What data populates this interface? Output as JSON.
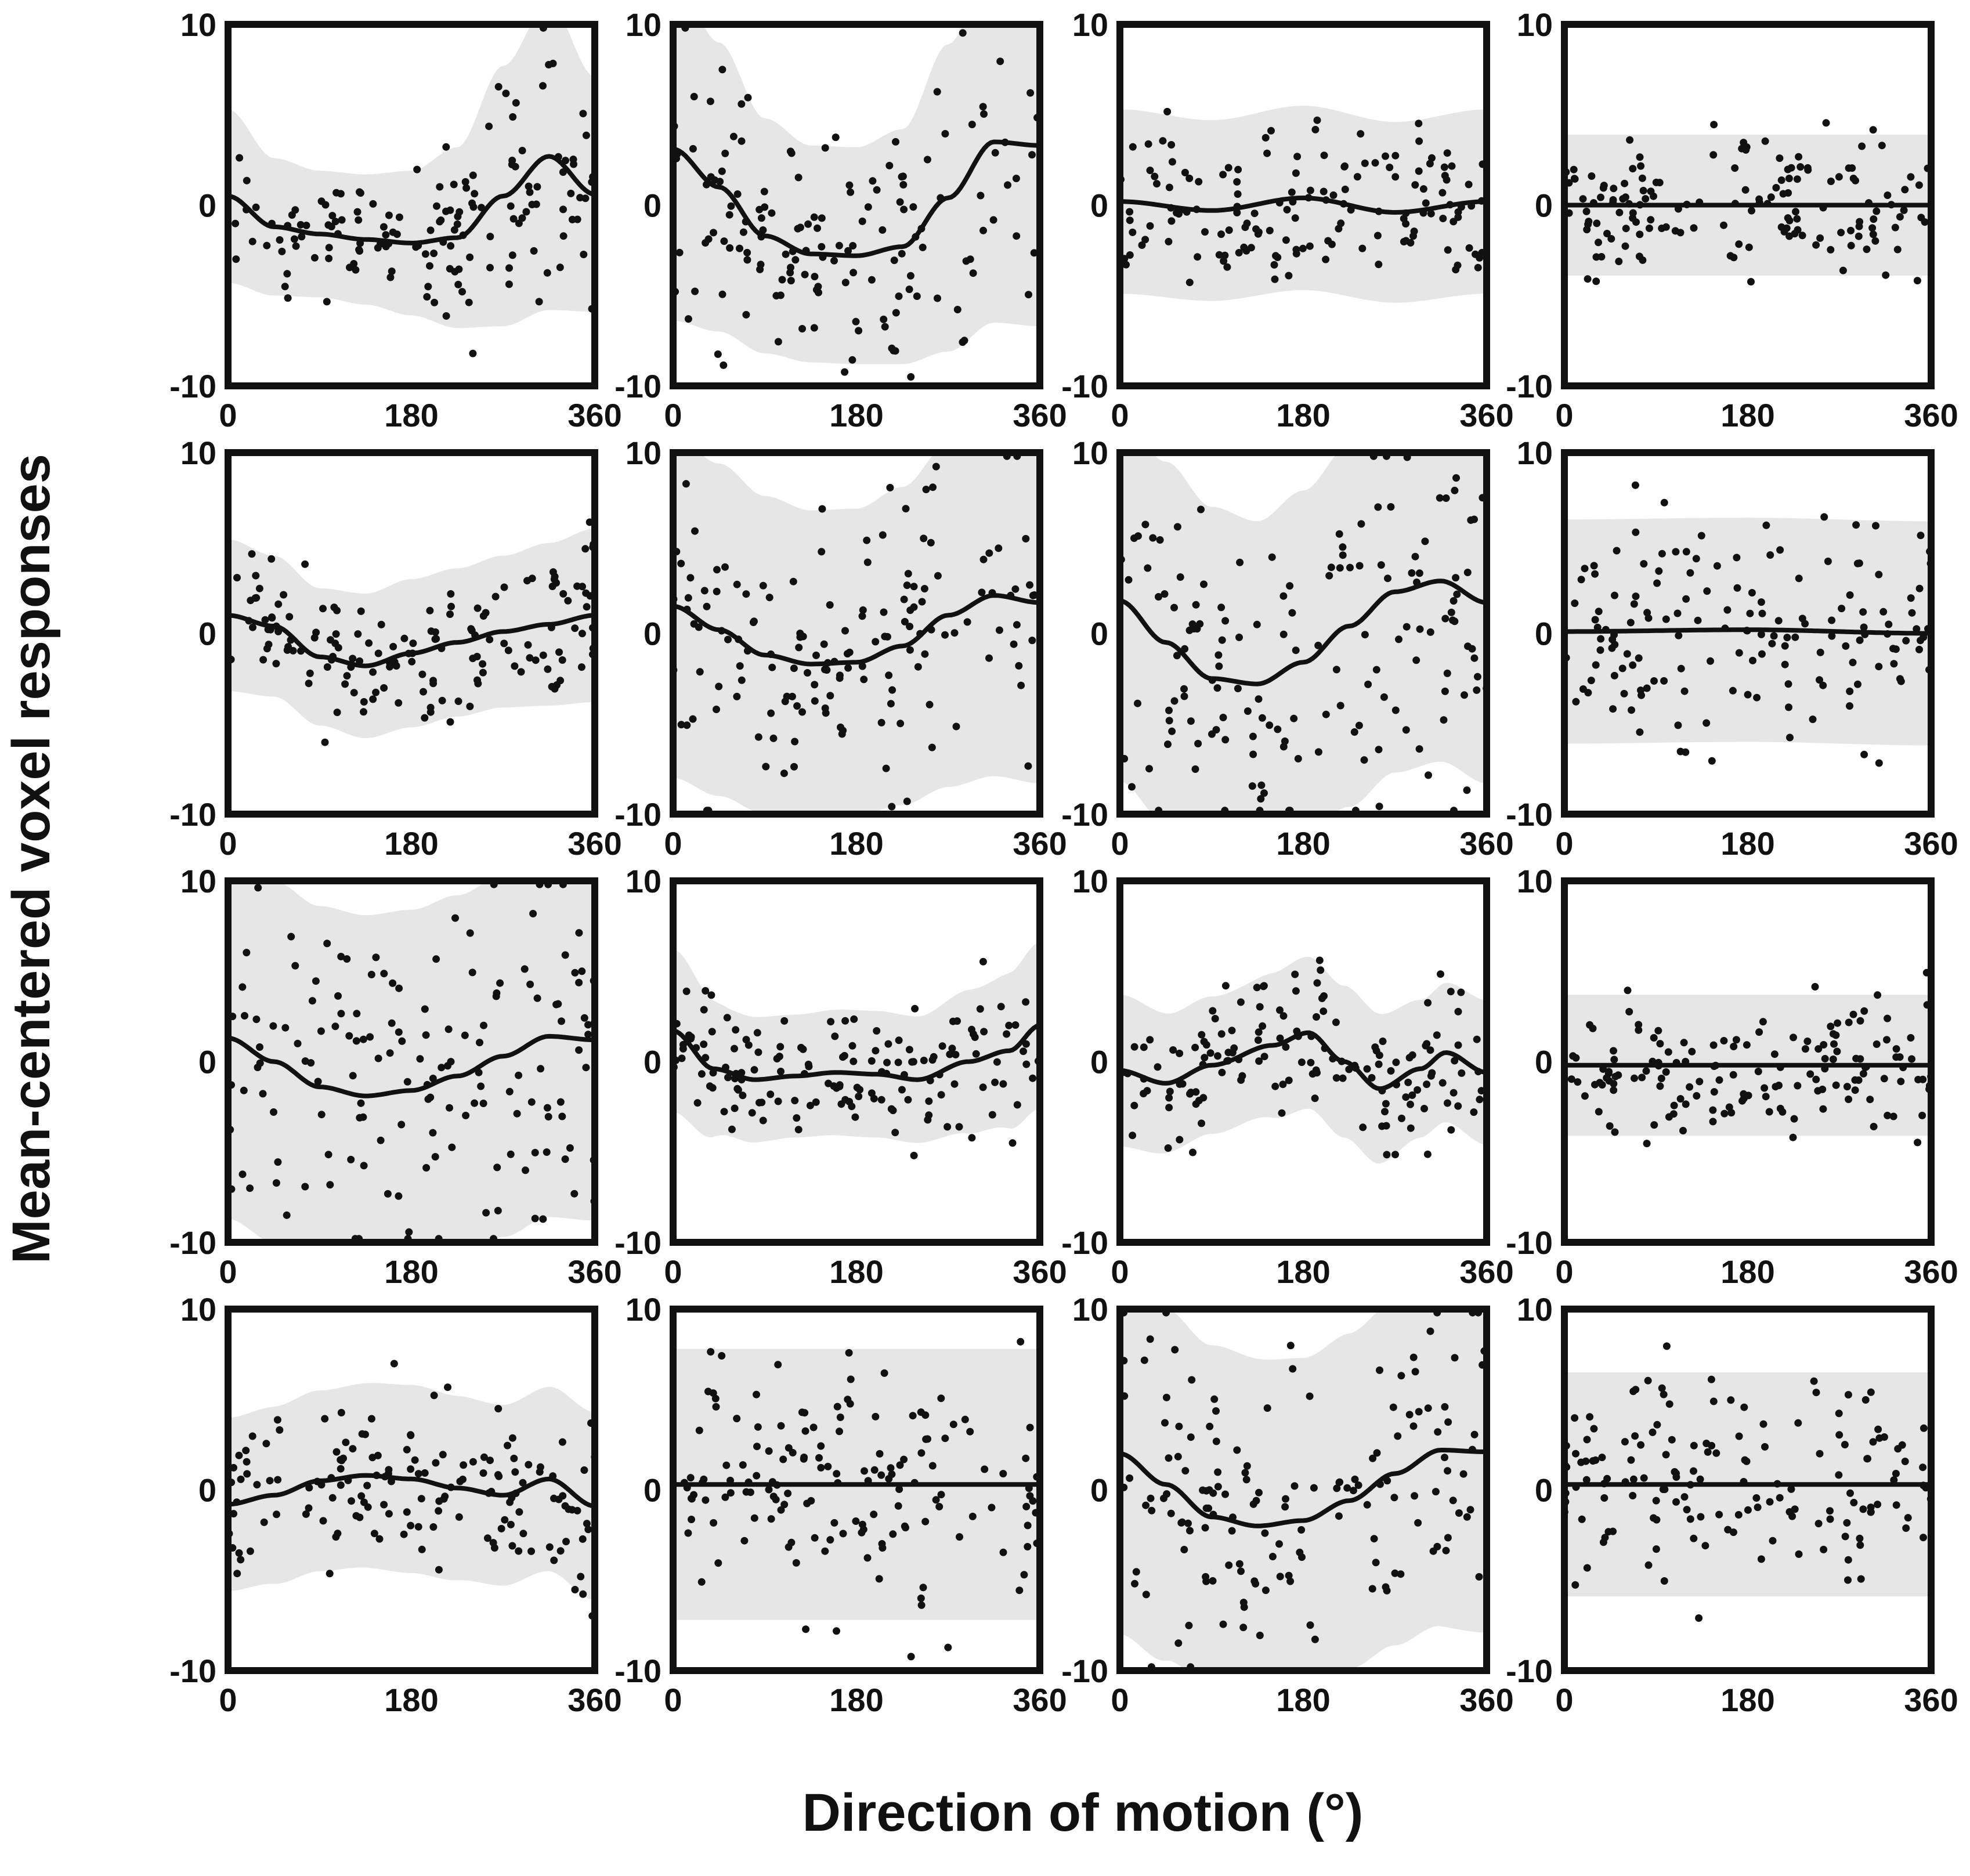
{
  "figure": {
    "ylabel": "Mean-centered voxel responses",
    "xlabel": "Direction of motion (°)"
  },
  "colors": {
    "band": "#e6e6e6",
    "curve": "#111111",
    "dots": "#111111",
    "frame": "#111111",
    "background": "#ffffff"
  },
  "chart_data": {
    "type": "scatter",
    "layout": "4x4 small multiples",
    "xlabel": "Direction of motion (°)",
    "ylabel": "Mean-centered voxel responses",
    "xlim": [
      0,
      360
    ],
    "ylim": [
      -10,
      10
    ],
    "xticks": [
      "0",
      "180",
      "360"
    ],
    "yticks": [
      "10",
      "0",
      "-10"
    ],
    "grid": false,
    "points_per_panel": 150,
    "panels": [
      {
        "row": 1,
        "col": 1,
        "fit": [
          [
            0,
            0.5
          ],
          [
            45,
            -1.2
          ],
          [
            90,
            -1.6
          ],
          [
            135,
            -1.9
          ],
          [
            180,
            -2.1
          ],
          [
            225,
            -1.8
          ],
          [
            270,
            0.5
          ],
          [
            315,
            2.7
          ],
          [
            360,
            0.6
          ]
        ],
        "band": [
          [
            0,
            4.8
          ],
          [
            45,
            3.8
          ],
          [
            90,
            3.5
          ],
          [
            135,
            3.6
          ],
          [
            180,
            4.0
          ],
          [
            225,
            5.0
          ],
          [
            270,
            7.2
          ],
          [
            315,
            8.5
          ],
          [
            360,
            6.5
          ]
        ],
        "seed": 11
      },
      {
        "row": 1,
        "col": 2,
        "fit": [
          [
            0,
            3.1
          ],
          [
            45,
            1.0
          ],
          [
            90,
            -1.7
          ],
          [
            135,
            -2.7
          ],
          [
            180,
            -2.8
          ],
          [
            225,
            -2.3
          ],
          [
            270,
            0.4
          ],
          [
            315,
            3.5
          ],
          [
            360,
            3.3
          ]
        ],
        "band": [
          [
            0,
            9.5
          ],
          [
            45,
            8.0
          ],
          [
            90,
            6.5
          ],
          [
            135,
            6.0
          ],
          [
            180,
            6.0
          ],
          [
            225,
            6.5
          ],
          [
            270,
            8.5
          ],
          [
            315,
            10
          ],
          [
            360,
            10
          ]
        ],
        "seed": 12
      },
      {
        "row": 1,
        "col": 3,
        "fit": [
          [
            0,
            0.2
          ],
          [
            90,
            -0.3
          ],
          [
            180,
            0.4
          ],
          [
            270,
            -0.4
          ],
          [
            360,
            0.2
          ]
        ],
        "band": [
          [
            0,
            5.1
          ],
          [
            90,
            5.0
          ],
          [
            180,
            5.1
          ],
          [
            270,
            5.0
          ],
          [
            360,
            5.1
          ]
        ],
        "seed": 13
      },
      {
        "row": 1,
        "col": 4,
        "fit": [
          [
            0,
            0
          ],
          [
            360,
            0
          ]
        ],
        "band": [
          [
            0,
            3.9
          ],
          [
            360,
            3.9
          ]
        ],
        "seed": 14
      },
      {
        "row": 2,
        "col": 1,
        "fit": [
          [
            0,
            1.0
          ],
          [
            45,
            0.4
          ],
          [
            90,
            -1.3
          ],
          [
            135,
            -1.8
          ],
          [
            180,
            -1.1
          ],
          [
            225,
            -0.5
          ],
          [
            270,
            0.1
          ],
          [
            315,
            0.5
          ],
          [
            360,
            1.0
          ]
        ],
        "band": [
          [
            0,
            4.2
          ],
          [
            45,
            3.9
          ],
          [
            90,
            3.8
          ],
          [
            135,
            4.0
          ],
          [
            180,
            4.1
          ],
          [
            225,
            4.1
          ],
          [
            270,
            4.2
          ],
          [
            315,
            4.5
          ],
          [
            360,
            4.8
          ]
        ],
        "seed": 21
      },
      {
        "row": 2,
        "col": 2,
        "fit": [
          [
            0,
            1.5
          ],
          [
            45,
            0.2
          ],
          [
            90,
            -1.2
          ],
          [
            135,
            -1.7
          ],
          [
            180,
            -1.6
          ],
          [
            225,
            -0.7
          ],
          [
            270,
            1.0
          ],
          [
            315,
            2.1
          ],
          [
            360,
            1.7
          ]
        ],
        "band": [
          [
            0,
            9.5
          ],
          [
            45,
            9.2
          ],
          [
            90,
            8.8
          ],
          [
            135,
            8.5
          ],
          [
            180,
            8.5
          ],
          [
            225,
            8.8
          ],
          [
            270,
            9.5
          ],
          [
            315,
            10
          ],
          [
            360,
            10
          ]
        ],
        "seed": 22
      },
      {
        "row": 2,
        "col": 3,
        "fit": [
          [
            0,
            1.8
          ],
          [
            45,
            -0.5
          ],
          [
            90,
            -2.5
          ],
          [
            135,
            -2.8
          ],
          [
            180,
            -1.6
          ],
          [
            225,
            0.4
          ],
          [
            270,
            2.3
          ],
          [
            315,
            2.9
          ],
          [
            360,
            1.7
          ]
        ],
        "band": [
          [
            0,
            10
          ],
          [
            45,
            10
          ],
          [
            90,
            9.5
          ],
          [
            135,
            9.0
          ],
          [
            180,
            9.5
          ],
          [
            225,
            10
          ],
          [
            270,
            10
          ],
          [
            315,
            10
          ],
          [
            360,
            10
          ]
        ],
        "seed": 23
      },
      {
        "row": 2,
        "col": 4,
        "fit": [
          [
            0,
            0.1
          ],
          [
            180,
            0.2
          ],
          [
            360,
            0
          ]
        ],
        "band": [
          [
            0,
            6.2
          ],
          [
            180,
            6.2
          ],
          [
            360,
            6.2
          ]
        ],
        "seed": 24
      },
      {
        "row": 3,
        "col": 1,
        "fit": [
          [
            0,
            1.3
          ],
          [
            45,
            0
          ],
          [
            90,
            -1.4
          ],
          [
            135,
            -1.9
          ],
          [
            180,
            -1.6
          ],
          [
            225,
            -0.8
          ],
          [
            270,
            0.3
          ],
          [
            315,
            1.4
          ],
          [
            360,
            1.2
          ]
        ],
        "band": [
          [
            0,
            10
          ],
          [
            360,
            10
          ]
        ],
        "seed": 31
      },
      {
        "row": 3,
        "col": 2,
        "fit": [
          [
            0,
            1.7
          ],
          [
            40,
            -0.4
          ],
          [
            80,
            -1.0
          ],
          [
            120,
            -0.8
          ],
          [
            160,
            -0.6
          ],
          [
            200,
            -0.7
          ],
          [
            240,
            -1.0
          ],
          [
            290,
            0
          ],
          [
            330,
            0.6
          ],
          [
            360,
            2.0
          ]
        ],
        "band": [
          [
            0,
            4.5
          ],
          [
            60,
            3.5
          ],
          [
            120,
            3.4
          ],
          [
            180,
            3.5
          ],
          [
            240,
            3.5
          ],
          [
            300,
            4.0
          ],
          [
            360,
            4.6
          ]
        ],
        "seed": 32
      },
      {
        "row": 3,
        "col": 3,
        "fit": [
          [
            0,
            -0.5
          ],
          [
            45,
            -1.2
          ],
          [
            90,
            -0.2
          ],
          [
            150,
            0.9
          ],
          [
            185,
            1.6
          ],
          [
            220,
            0
          ],
          [
            255,
            -1.5
          ],
          [
            295,
            -0.4
          ],
          [
            320,
            0.5
          ],
          [
            360,
            -0.6
          ]
        ],
        "band": [
          [
            0,
            4.2
          ],
          [
            60,
            3.8
          ],
          [
            120,
            3.8
          ],
          [
            180,
            4.2
          ],
          [
            240,
            4.2
          ],
          [
            300,
            3.8
          ],
          [
            360,
            4.0
          ]
        ],
        "seed": 33
      },
      {
        "row": 3,
        "col": 4,
        "fit": [
          [
            0,
            -0.2
          ],
          [
            360,
            -0.2
          ]
        ],
        "band": [
          [
            0,
            3.9
          ],
          [
            360,
            3.9
          ]
        ],
        "seed": 34
      },
      {
        "row": 4,
        "col": 1,
        "fit": [
          [
            0,
            -0.8
          ],
          [
            45,
            -0.3
          ],
          [
            90,
            0.5
          ],
          [
            135,
            0.8
          ],
          [
            180,
            0.6
          ],
          [
            225,
            0.1
          ],
          [
            270,
            -0.3
          ],
          [
            315,
            0.6
          ],
          [
            360,
            -0.9
          ]
        ],
        "band": [
          [
            0,
            4.8
          ],
          [
            90,
            5.0
          ],
          [
            180,
            5.2
          ],
          [
            270,
            5.0
          ],
          [
            360,
            5.2
          ]
        ],
        "seed": 41
      },
      {
        "row": 4,
        "col": 2,
        "fit": [
          [
            0,
            0.3
          ],
          [
            360,
            0.3
          ]
        ],
        "band": [
          [
            0,
            7.5
          ],
          [
            360,
            7.5
          ]
        ],
        "seed": 42
      },
      {
        "row": 4,
        "col": 3,
        "fit": [
          [
            0,
            2.0
          ],
          [
            45,
            0.3
          ],
          [
            90,
            -1.5
          ],
          [
            135,
            -2.0
          ],
          [
            180,
            -1.7
          ],
          [
            225,
            -0.6
          ],
          [
            270,
            0.9
          ],
          [
            315,
            2.2
          ],
          [
            360,
            2.1
          ]
        ],
        "band": [
          [
            0,
            10
          ],
          [
            90,
            9.5
          ],
          [
            180,
            9.0
          ],
          [
            270,
            9.5
          ],
          [
            360,
            10
          ]
        ],
        "seed": 43
      },
      {
        "row": 4,
        "col": 4,
        "fit": [
          [
            0,
            0.3
          ],
          [
            360,
            0.3
          ]
        ],
        "band": [
          [
            0,
            6.2
          ],
          [
            360,
            6.2
          ]
        ],
        "seed": 44
      }
    ]
  }
}
